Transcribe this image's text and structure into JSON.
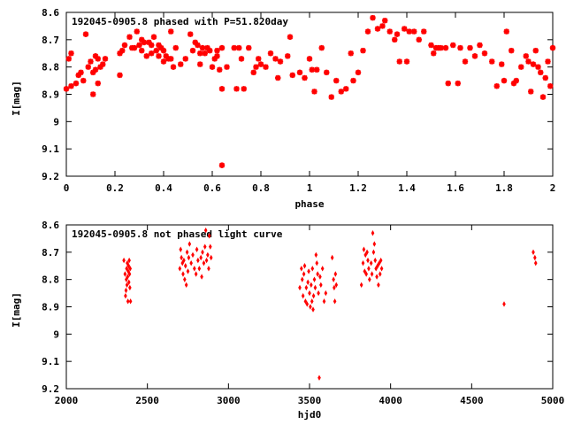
{
  "colors": {
    "points": "#ff0000",
    "axes": "#000000",
    "background": "#ffffff"
  },
  "chart_data": [
    {
      "type": "scatter",
      "title": "192045-0905.8 phased with P=51.820day",
      "xlabel": "phase",
      "ylabel": "I[mag]",
      "xlim": [
        0,
        2
      ],
      "ylim": [
        8.6,
        9.2
      ],
      "y_inverted": true,
      "marker": "star",
      "grid": false,
      "x_ticks": [
        0,
        0.2,
        0.4,
        0.6,
        0.8,
        1,
        1.2,
        1.4,
        1.6,
        1.8,
        2
      ],
      "x_tick_labels": [
        "0",
        "0.2",
        "0.4",
        "0.6",
        "0.8",
        "1",
        "1.2",
        "1.4",
        "1.6",
        "1.8",
        "2"
      ],
      "y_ticks": [
        8.6,
        8.7,
        8.8,
        8.9,
        9,
        9.1,
        9.2
      ],
      "y_tick_labels": [
        "8.6",
        "8.7",
        "8.8",
        "8.9",
        "9",
        "9.1",
        "9.2"
      ],
      "points": [
        [
          0.0,
          8.88
        ],
        [
          0.01,
          8.77
        ],
        [
          0.02,
          8.75
        ],
        [
          0.02,
          8.87
        ],
        [
          0.04,
          8.86
        ],
        [
          0.05,
          8.83
        ],
        [
          0.06,
          8.82
        ],
        [
          0.07,
          8.85
        ],
        [
          0.08,
          8.68
        ],
        [
          0.09,
          8.8
        ],
        [
          0.1,
          8.78
        ],
        [
          0.11,
          8.82
        ],
        [
          0.11,
          8.9
        ],
        [
          0.12,
          8.76
        ],
        [
          0.12,
          8.81
        ],
        [
          0.13,
          8.77
        ],
        [
          0.13,
          8.86
        ],
        [
          0.14,
          8.8
        ],
        [
          0.15,
          8.79
        ],
        [
          0.16,
          8.77
        ],
        [
          0.22,
          8.83
        ],
        [
          0.22,
          8.75
        ],
        [
          0.23,
          8.74
        ],
        [
          0.24,
          8.72
        ],
        [
          0.26,
          8.69
        ],
        [
          0.27,
          8.73
        ],
        [
          0.28,
          8.73
        ],
        [
          0.29,
          8.67
        ],
        [
          0.3,
          8.72
        ],
        [
          0.31,
          8.7
        ],
        [
          0.31,
          8.74
        ],
        [
          0.32,
          8.71
        ],
        [
          0.33,
          8.76
        ],
        [
          0.34,
          8.71
        ],
        [
          0.35,
          8.75
        ],
        [
          0.35,
          8.72
        ],
        [
          0.36,
          8.69
        ],
        [
          0.37,
          8.74
        ],
        [
          0.38,
          8.76
        ],
        [
          0.38,
          8.72
        ],
        [
          0.39,
          8.73
        ],
        [
          0.4,
          8.74
        ],
        [
          0.4,
          8.78
        ],
        [
          0.41,
          8.76
        ],
        [
          0.42,
          8.77
        ],
        [
          0.43,
          8.77
        ],
        [
          0.43,
          8.67
        ],
        [
          0.44,
          8.8
        ],
        [
          0.45,
          8.73
        ],
        [
          0.47,
          8.79
        ],
        [
          0.49,
          8.77
        ],
        [
          0.51,
          8.68
        ],
        [
          0.52,
          8.74
        ],
        [
          0.53,
          8.71
        ],
        [
          0.54,
          8.72
        ],
        [
          0.55,
          8.79
        ],
        [
          0.55,
          8.75
        ],
        [
          0.56,
          8.73
        ],
        [
          0.57,
          8.75
        ],
        [
          0.58,
          8.73
        ],
        [
          0.59,
          8.74
        ],
        [
          0.6,
          8.8
        ],
        [
          0.61,
          8.77
        ],
        [
          0.62,
          8.76
        ],
        [
          0.62,
          8.74
        ],
        [
          0.63,
          8.81
        ],
        [
          0.64,
          8.73
        ],
        [
          0.64,
          8.88
        ],
        [
          0.64,
          9.16
        ],
        [
          0.66,
          8.8
        ],
        [
          0.69,
          8.73
        ],
        [
          0.7,
          8.88
        ],
        [
          0.71,
          8.73
        ],
        [
          0.72,
          8.77
        ],
        [
          0.73,
          8.88
        ],
        [
          0.75,
          8.73
        ],
        [
          0.77,
          8.82
        ],
        [
          0.78,
          8.8
        ],
        [
          0.79,
          8.77
        ],
        [
          0.8,
          8.79
        ],
        [
          0.82,
          8.8
        ],
        [
          0.84,
          8.75
        ],
        [
          0.86,
          8.77
        ],
        [
          0.87,
          8.84
        ],
        [
          0.88,
          8.78
        ],
        [
          0.91,
          8.76
        ],
        [
          0.92,
          8.69
        ],
        [
          0.93,
          8.83
        ],
        [
          0.96,
          8.82
        ],
        [
          0.98,
          8.84
        ],
        [
          1.0,
          8.77
        ],
        [
          1.01,
          8.81
        ],
        [
          1.02,
          8.89
        ],
        [
          1.03,
          8.81
        ],
        [
          1.05,
          8.73
        ],
        [
          1.07,
          8.82
        ],
        [
          1.09,
          8.91
        ],
        [
          1.11,
          8.85
        ],
        [
          1.13,
          8.89
        ],
        [
          1.15,
          8.88
        ],
        [
          1.17,
          8.75
        ],
        [
          1.18,
          8.85
        ],
        [
          1.2,
          8.82
        ],
        [
          1.22,
          8.74
        ],
        [
          1.24,
          8.67
        ],
        [
          1.26,
          8.62
        ],
        [
          1.28,
          8.66
        ],
        [
          1.3,
          8.65
        ],
        [
          1.31,
          8.63
        ],
        [
          1.33,
          8.67
        ],
        [
          1.35,
          8.7
        ],
        [
          1.36,
          8.68
        ],
        [
          1.37,
          8.78
        ],
        [
          1.39,
          8.66
        ],
        [
          1.4,
          8.78
        ],
        [
          1.41,
          8.67
        ],
        [
          1.43,
          8.67
        ],
        [
          1.45,
          8.7
        ],
        [
          1.47,
          8.67
        ],
        [
          1.5,
          8.72
        ],
        [
          1.51,
          8.75
        ],
        [
          1.52,
          8.73
        ],
        [
          1.53,
          8.73
        ],
        [
          1.54,
          8.73
        ],
        [
          1.56,
          8.73
        ],
        [
          1.57,
          8.86
        ],
        [
          1.59,
          8.72
        ],
        [
          1.61,
          8.86
        ],
        [
          1.62,
          8.73
        ],
        [
          1.64,
          8.78
        ],
        [
          1.66,
          8.73
        ],
        [
          1.68,
          8.76
        ],
        [
          1.7,
          8.72
        ],
        [
          1.72,
          8.75
        ],
        [
          1.75,
          8.78
        ],
        [
          1.77,
          8.87
        ],
        [
          1.79,
          8.79
        ],
        [
          1.8,
          8.85
        ],
        [
          1.81,
          8.67
        ],
        [
          1.83,
          8.74
        ],
        [
          1.84,
          8.86
        ],
        [
          1.85,
          8.85
        ],
        [
          1.87,
          8.8
        ],
        [
          1.89,
          8.76
        ],
        [
          1.9,
          8.78
        ],
        [
          1.91,
          8.89
        ],
        [
          1.92,
          8.79
        ],
        [
          1.93,
          8.74
        ],
        [
          1.94,
          8.8
        ],
        [
          1.95,
          8.82
        ],
        [
          1.96,
          8.91
        ],
        [
          1.97,
          8.84
        ],
        [
          1.98,
          8.78
        ],
        [
          1.99,
          8.87
        ],
        [
          2.0,
          8.73
        ]
      ]
    },
    {
      "type": "scatter",
      "title": "192045-0905.8 not phased light curve",
      "xlabel": "hjd0",
      "ylabel": "I[mag]",
      "xlim": [
        2000,
        5000
      ],
      "ylim": [
        8.6,
        9.2
      ],
      "y_inverted": true,
      "marker": "diamond",
      "grid": false,
      "x_ticks": [
        2000,
        2500,
        3000,
        3500,
        4000,
        4500,
        5000
      ],
      "x_tick_labels": [
        "2000",
        "2500",
        "3000",
        "3500",
        "4000",
        "4500",
        "5000"
      ],
      "y_ticks": [
        8.6,
        8.7,
        8.8,
        8.9,
        9,
        9.1,
        9.2
      ],
      "y_tick_labels": [
        "8.6",
        "8.7",
        "8.8",
        "8.9",
        "9",
        "9.1",
        "9.2"
      ],
      "points": [
        [
          2355,
          8.73
        ],
        [
          2362,
          8.78
        ],
        [
          2365,
          8.86
        ],
        [
          2368,
          8.84
        ],
        [
          2370,
          8.8
        ],
        [
          2372,
          8.76
        ],
        [
          2374,
          8.82
        ],
        [
          2376,
          8.74
        ],
        [
          2378,
          8.79
        ],
        [
          2380,
          8.88
        ],
        [
          2382,
          8.77
        ],
        [
          2384,
          8.75
        ],
        [
          2386,
          8.81
        ],
        [
          2388,
          8.73
        ],
        [
          2390,
          8.78
        ],
        [
          2392,
          8.83
        ],
        [
          2394,
          8.76
        ],
        [
          2396,
          8.88
        ],
        [
          2700,
          8.76
        ],
        [
          2705,
          8.69
        ],
        [
          2710,
          8.72
        ],
        [
          2716,
          8.74
        ],
        [
          2720,
          8.78
        ],
        [
          2725,
          8.73
        ],
        [
          2730,
          8.8
        ],
        [
          2735,
          8.75
        ],
        [
          2740,
          8.82
        ],
        [
          2745,
          8.7
        ],
        [
          2750,
          8.77
        ],
        [
          2755,
          8.72
        ],
        [
          2760,
          8.67
        ],
        [
          2770,
          8.74
        ],
        [
          2780,
          8.71
        ],
        [
          2790,
          8.76
        ],
        [
          2800,
          8.78
        ],
        [
          2805,
          8.69
        ],
        [
          2812,
          8.73
        ],
        [
          2820,
          8.76
        ],
        [
          2830,
          8.72
        ],
        [
          2835,
          8.79
        ],
        [
          2840,
          8.7
        ],
        [
          2848,
          8.74
        ],
        [
          2855,
          8.68
        ],
        [
          2860,
          8.62
        ],
        [
          2865,
          8.73
        ],
        [
          2872,
          8.71
        ],
        [
          2878,
          8.76
        ],
        [
          2882,
          8.64
        ],
        [
          2888,
          8.68
        ],
        [
          2893,
          8.72
        ],
        [
          3440,
          8.83
        ],
        [
          3450,
          8.76
        ],
        [
          3455,
          8.8
        ],
        [
          3460,
          8.86
        ],
        [
          3465,
          8.78
        ],
        [
          3470,
          8.75
        ],
        [
          3475,
          8.88
        ],
        [
          3480,
          8.83
        ],
        [
          3485,
          8.89
        ],
        [
          3490,
          8.81
        ],
        [
          3495,
          8.77
        ],
        [
          3500,
          8.85
        ],
        [
          3505,
          8.9
        ],
        [
          3510,
          8.82
        ],
        [
          3515,
          8.88
        ],
        [
          3518,
          8.76
        ],
        [
          3522,
          8.91
        ],
        [
          3525,
          8.86
        ],
        [
          3530,
          8.8
        ],
        [
          3535,
          8.83
        ],
        [
          3540,
          8.71
        ],
        [
          3545,
          8.74
        ],
        [
          3550,
          8.78
        ],
        [
          3555,
          8.85
        ],
        [
          3560,
          9.16
        ],
        [
          3565,
          8.79
        ],
        [
          3570,
          8.82
        ],
        [
          3580,
          8.76
        ],
        [
          3590,
          8.88
        ],
        [
          3600,
          8.85
        ],
        [
          3640,
          8.72
        ],
        [
          3648,
          8.8
        ],
        [
          3652,
          8.83
        ],
        [
          3656,
          8.88
        ],
        [
          3660,
          8.78
        ],
        [
          3665,
          8.82
        ],
        [
          3820,
          8.82
        ],
        [
          3830,
          8.74
        ],
        [
          3835,
          8.69
        ],
        [
          3840,
          8.77
        ],
        [
          3845,
          8.71
        ],
        [
          3850,
          8.78
        ],
        [
          3855,
          8.7
        ],
        [
          3860,
          8.73
        ],
        [
          3865,
          8.76
        ],
        [
          3870,
          8.8
        ],
        [
          3880,
          8.74
        ],
        [
          3885,
          8.78
        ],
        [
          3890,
          8.63
        ],
        [
          3895,
          8.7
        ],
        [
          3900,
          8.67
        ],
        [
          3905,
          8.73
        ],
        [
          3910,
          8.76
        ],
        [
          3915,
          8.79
        ],
        [
          3920,
          8.75
        ],
        [
          3925,
          8.82
        ],
        [
          3930,
          8.74
        ],
        [
          3935,
          8.78
        ],
        [
          3940,
          8.73
        ],
        [
          3945,
          8.76
        ],
        [
          4700,
          8.89
        ],
        [
          4880,
          8.7
        ],
        [
          4890,
          8.72
        ],
        [
          4895,
          8.74
        ]
      ]
    }
  ]
}
